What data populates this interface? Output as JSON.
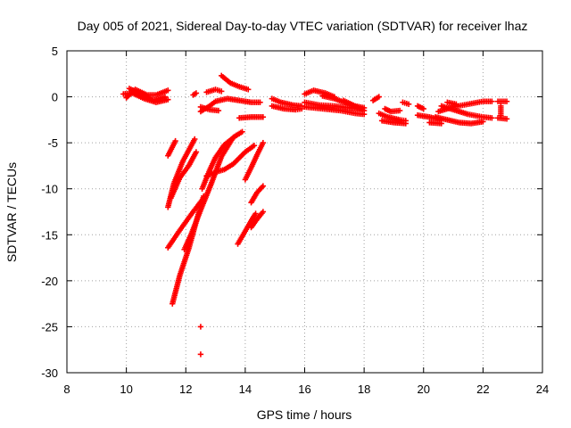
{
  "chart_data": {
    "type": "scatter",
    "title": "Day 005 of 2021, Sidereal Day-to-day VTEC variation (SDTVAR) for receiver lhaz",
    "xlabel": "GPS time / hours",
    "ylabel": "SDTVAR / TECUs",
    "xlim": [
      8,
      24
    ],
    "ylim": [
      -30,
      5
    ],
    "xticks": [
      8,
      10,
      12,
      14,
      16,
      18,
      20,
      22,
      24
    ],
    "yticks": [
      5,
      0,
      -5,
      -10,
      -15,
      -20,
      -25,
      -30
    ],
    "grid": true,
    "marker": "plus",
    "color": "#ff0000",
    "series": [
      {
        "name": "SDTVAR",
        "tracks": [
          [
            [
              9.9,
              0.3
            ],
            [
              10.2,
              0.4
            ],
            [
              10.6,
              -0.2
            ],
            [
              11.0,
              -0.6
            ],
            [
              11.4,
              -0.3
            ]
          ],
          [
            [
              10.0,
              -0.1
            ],
            [
              10.3,
              0.8
            ],
            [
              10.7,
              0.2
            ],
            [
              11.0,
              0.2
            ],
            [
              11.4,
              0.7
            ]
          ],
          [
            [
              10.1,
              0.9
            ],
            [
              10.5,
              0.3
            ],
            [
              10.9,
              -0.4
            ],
            [
              11.3,
              0.0
            ]
          ],
          [
            [
              11.4,
              -6.4
            ],
            [
              11.65,
              -4.8
            ]
          ],
          [
            [
              11.4,
              -12.0
            ],
            [
              11.6,
              -9.4
            ],
            [
              11.9,
              -7.0
            ],
            [
              12.3,
              -4.6
            ]
          ],
          [
            [
              11.5,
              -11.0
            ],
            [
              11.8,
              -8.8
            ],
            [
              12.1,
              -7.5
            ],
            [
              12.35,
              -6.0
            ]
          ],
          [
            [
              11.4,
              -16.4
            ],
            [
              11.8,
              -14.5
            ],
            [
              12.2,
              -12.7
            ],
            [
              12.6,
              -11.0
            ]
          ],
          [
            [
              11.55,
              -22.5
            ],
            [
              11.8,
              -19.4
            ],
            [
              12.1,
              -16.5
            ],
            [
              12.4,
              -13.0
            ],
            [
              12.6,
              -10.8
            ]
          ],
          [
            [
              11.95,
              -16.6
            ],
            [
              12.2,
              -14.8
            ],
            [
              12.5,
              -12.3
            ],
            [
              12.85,
              -9.5
            ],
            [
              13.2,
              -6.5
            ],
            [
              13.6,
              -4.4
            ],
            [
              13.9,
              -3.8
            ]
          ],
          [
            [
              12.55,
              -10.0
            ],
            [
              12.8,
              -8.0
            ],
            [
              13.0,
              -6.6
            ],
            [
              13.3,
              -5.2
            ],
            [
              13.7,
              -4.2
            ]
          ],
          [
            [
              12.5,
              -25.0
            ]
          ],
          [
            [
              12.5,
              -28.0
            ]
          ],
          [
            [
              12.7,
              -8.6
            ],
            [
              13.0,
              -8.2
            ],
            [
              13.3,
              -7.9
            ],
            [
              13.6,
              -7.3
            ],
            [
              14.0,
              -6.0
            ],
            [
              14.3,
              -5.3
            ]
          ],
          [
            [
              13.75,
              -16.0
            ],
            [
              14.0,
              -14.6
            ],
            [
              14.25,
              -13.2
            ],
            [
              14.35,
              -12.7
            ]
          ],
          [
            [
              14.0,
              -9.0
            ],
            [
              14.2,
              -7.7
            ],
            [
              14.4,
              -6.3
            ],
            [
              14.6,
              -5.0
            ]
          ],
          [
            [
              14.2,
              -11.5
            ],
            [
              14.4,
              -10.4
            ],
            [
              14.6,
              -9.7
            ]
          ],
          [
            [
              14.2,
              -14.2
            ],
            [
              14.4,
              -13.3
            ],
            [
              14.6,
              -12.5
            ]
          ],
          [
            [
              12.25,
              0.2
            ],
            [
              12.35,
              0.4
            ]
          ],
          [
            [
              12.7,
              0.5
            ],
            [
              13.0,
              0.8
            ],
            [
              13.2,
              0.6
            ]
          ],
          [
            [
              13.2,
              2.3
            ],
            [
              13.5,
              1.5
            ],
            [
              13.8,
              1.1
            ],
            [
              14.1,
              0.8
            ]
          ],
          [
            [
              12.5,
              -1.6
            ],
            [
              12.8,
              -1.0
            ],
            [
              13.0,
              -0.5
            ],
            [
              13.4,
              -0.2
            ],
            [
              13.8,
              -0.4
            ],
            [
              14.2,
              -0.6
            ],
            [
              14.5,
              -0.6
            ]
          ],
          [
            [
              12.5,
              -1.1
            ],
            [
              12.8,
              -1.4
            ],
            [
              13.1,
              -1.5
            ]
          ],
          [
            [
              13.8,
              -2.3
            ],
            [
              14.2,
              -2.2
            ],
            [
              14.6,
              -2.2
            ]
          ],
          [
            [
              14.9,
              -0.2
            ],
            [
              15.2,
              -0.6
            ],
            [
              15.6,
              -0.9
            ],
            [
              15.9,
              -1.0
            ]
          ],
          [
            [
              14.9,
              -1.0
            ],
            [
              15.3,
              -1.3
            ],
            [
              15.7,
              -1.4
            ],
            [
              15.9,
              -1.3
            ]
          ],
          [
            [
              16.0,
              0.3
            ],
            [
              16.3,
              0.7
            ],
            [
              16.7,
              0.4
            ],
            [
              17.0,
              0.0
            ]
          ],
          [
            [
              16.0,
              -0.6
            ],
            [
              16.5,
              -0.9
            ],
            [
              17.0,
              -1.0
            ],
            [
              17.5,
              -1.2
            ],
            [
              17.9,
              -1.3
            ]
          ],
          [
            [
              16.0,
              -1.1
            ],
            [
              16.6,
              -1.3
            ],
            [
              17.2,
              -1.5
            ],
            [
              17.7,
              -1.8
            ],
            [
              18.0,
              -1.9
            ]
          ],
          [
            [
              16.6,
              0.1
            ],
            [
              17.0,
              -0.2
            ],
            [
              17.5,
              -0.8
            ],
            [
              18.0,
              -1.5
            ]
          ],
          [
            [
              17.3,
              -0.4
            ],
            [
              17.7,
              -1.0
            ],
            [
              18.0,
              -1.2
            ]
          ],
          [
            [
              18.3,
              -0.4
            ],
            [
              18.5,
              0.0
            ]
          ],
          [
            [
              18.5,
              -1.8
            ],
            [
              18.8,
              -2.2
            ],
            [
              19.2,
              -2.5
            ],
            [
              19.4,
              -2.6
            ]
          ],
          [
            [
              18.6,
              -2.6
            ],
            [
              19.0,
              -2.8
            ],
            [
              19.4,
              -2.9
            ]
          ],
          [
            [
              18.7,
              -1.3
            ],
            [
              18.9,
              -1.6
            ],
            [
              19.2,
              -1.5
            ]
          ],
          [
            [
              19.3,
              -0.6
            ],
            [
              19.5,
              -0.8
            ]
          ],
          [
            [
              19.8,
              -1.0
            ],
            [
              20.0,
              -1.3
            ]
          ],
          [
            [
              19.8,
              -2.0
            ],
            [
              20.2,
              -2.2
            ],
            [
              20.6,
              -2.5
            ]
          ],
          [
            [
              20.4,
              -2.2
            ],
            [
              20.8,
              -2.5
            ],
            [
              21.2,
              -2.8
            ],
            [
              21.6,
              -2.9
            ],
            [
              22.0,
              -2.7
            ]
          ],
          [
            [
              20.5,
              -1.6
            ],
            [
              21.0,
              -1.1
            ],
            [
              21.5,
              -0.8
            ],
            [
              22.0,
              -0.5
            ],
            [
              22.3,
              -0.5
            ]
          ],
          [
            [
              20.6,
              -1.0
            ],
            [
              21.0,
              -1.4
            ],
            [
              21.5,
              -1.9
            ],
            [
              22.0,
              -2.2
            ],
            [
              22.3,
              -2.3
            ]
          ],
          [
            [
              20.2,
              -2.8
            ],
            [
              20.6,
              -2.9
            ]
          ],
          [
            [
              20.8,
              -0.6
            ],
            [
              21.1,
              -0.8
            ]
          ],
          [
            [
              22.5,
              -0.5
            ],
            [
              22.8,
              -0.5
            ]
          ],
          [
            [
              22.5,
              -2.3
            ],
            [
              22.8,
              -2.4
            ]
          ],
          [
            [
              22.6,
              -1.0
            ],
            [
              22.6,
              -2.0
            ]
          ]
        ]
      }
    ]
  }
}
